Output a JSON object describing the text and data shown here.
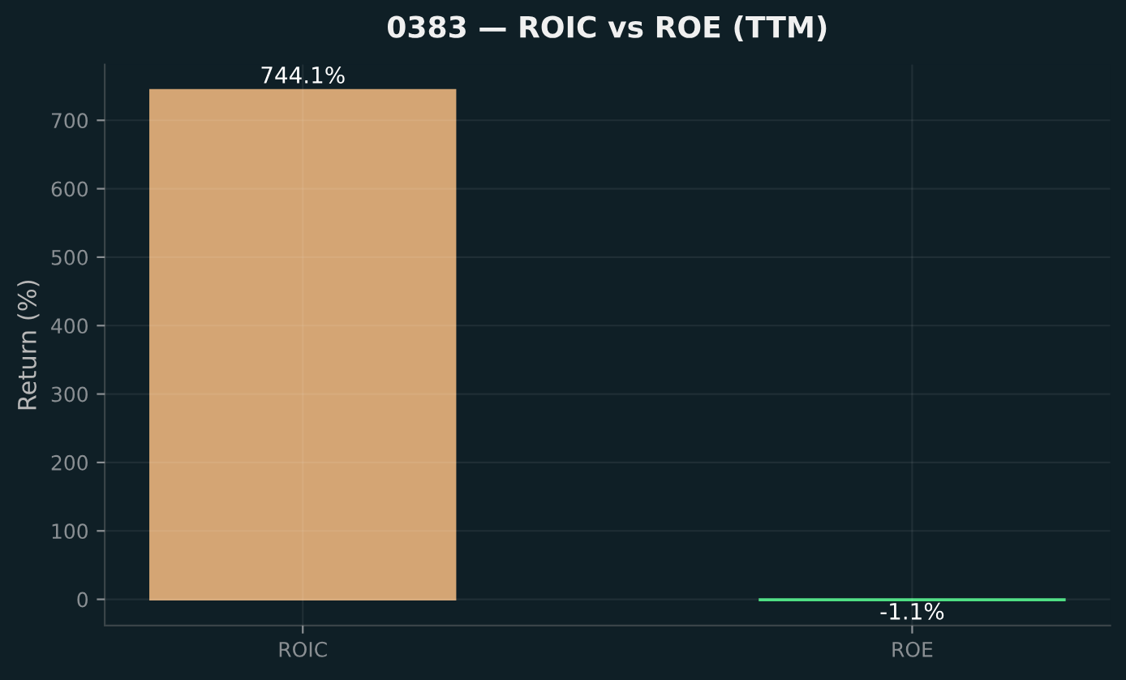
{
  "chart_data": {
    "type": "bar",
    "title": "0383 — ROIC vs ROE (TTM)",
    "ylabel": "Return (%)",
    "categories": [
      "ROIC",
      "ROE"
    ],
    "values": [
      744.1,
      -1.1
    ],
    "colors": [
      "#d4a574",
      "#4ade80"
    ],
    "value_labels": [
      "744.1%",
      "-1.1%"
    ],
    "ylim": [
      -38.4,
      781.4
    ],
    "yticks": [
      0,
      100,
      200,
      300,
      400,
      500,
      600,
      700
    ],
    "grid": true
  }
}
